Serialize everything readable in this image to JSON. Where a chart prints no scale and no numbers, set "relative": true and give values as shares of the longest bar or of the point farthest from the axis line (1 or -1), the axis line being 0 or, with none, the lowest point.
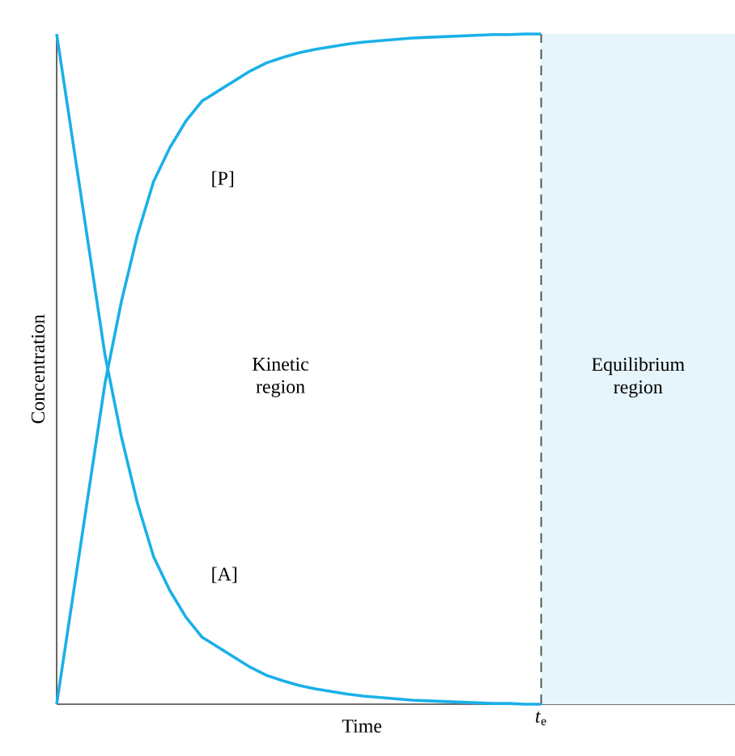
{
  "chart_data": {
    "type": "line",
    "relative": true,
    "xlabel": "Time",
    "ylabel": "Concentration",
    "categories": [
      null,
      null,
      null,
      null,
      null,
      null,
      null,
      null,
      null,
      null,
      null,
      null,
      null,
      null,
      null,
      null,
      null,
      null,
      null,
      null,
      null,
      null,
      null,
      null,
      null,
      null,
      null,
      null,
      null,
      null,
      null,
      null,
      null,
      null,
      null,
      null,
      null,
      null,
      null,
      null,
      null,
      null,
      null
    ],
    "series": [
      {
        "name": "[P]",
        "color": "#1ab0e8",
        "values": [
          0,
          0.16,
          0.32,
          0.48,
          0.6,
          0.7,
          0.78,
          0.83,
          0.87,
          0.9,
          0.915,
          0.93,
          0.945,
          0.957,
          0.965,
          0.972,
          0.977,
          0.981,
          0.985,
          0.988,
          0.99,
          0.992,
          0.994,
          0.995,
          0.996,
          0.997,
          0.998,
          0.999,
          0.999,
          1,
          1,
          null,
          null,
          null,
          null,
          null,
          null,
          null,
          null,
          null,
          null,
          null,
          null
        ]
      },
      {
        "name": "[A]",
        "color": "#1ab0e8",
        "values": [
          1,
          0.84,
          0.68,
          0.52,
          0.4,
          0.3,
          0.22,
          0.17,
          0.13,
          0.1,
          0.085,
          0.07,
          0.055,
          0.043,
          0.035,
          0.028,
          0.023,
          0.019,
          0.015,
          0.012,
          0.01,
          0.008,
          0.006,
          0.005,
          0.004,
          0.003,
          0.002,
          0.001,
          0.001,
          0,
          0,
          null,
          null,
          null,
          null,
          null,
          null,
          null,
          null,
          null,
          null,
          null,
          null
        ]
      }
    ],
    "annotations": [
      "Kinetic region",
      "Equilibrium region",
      "*t*$_{e}$"
    ]
  }
}
